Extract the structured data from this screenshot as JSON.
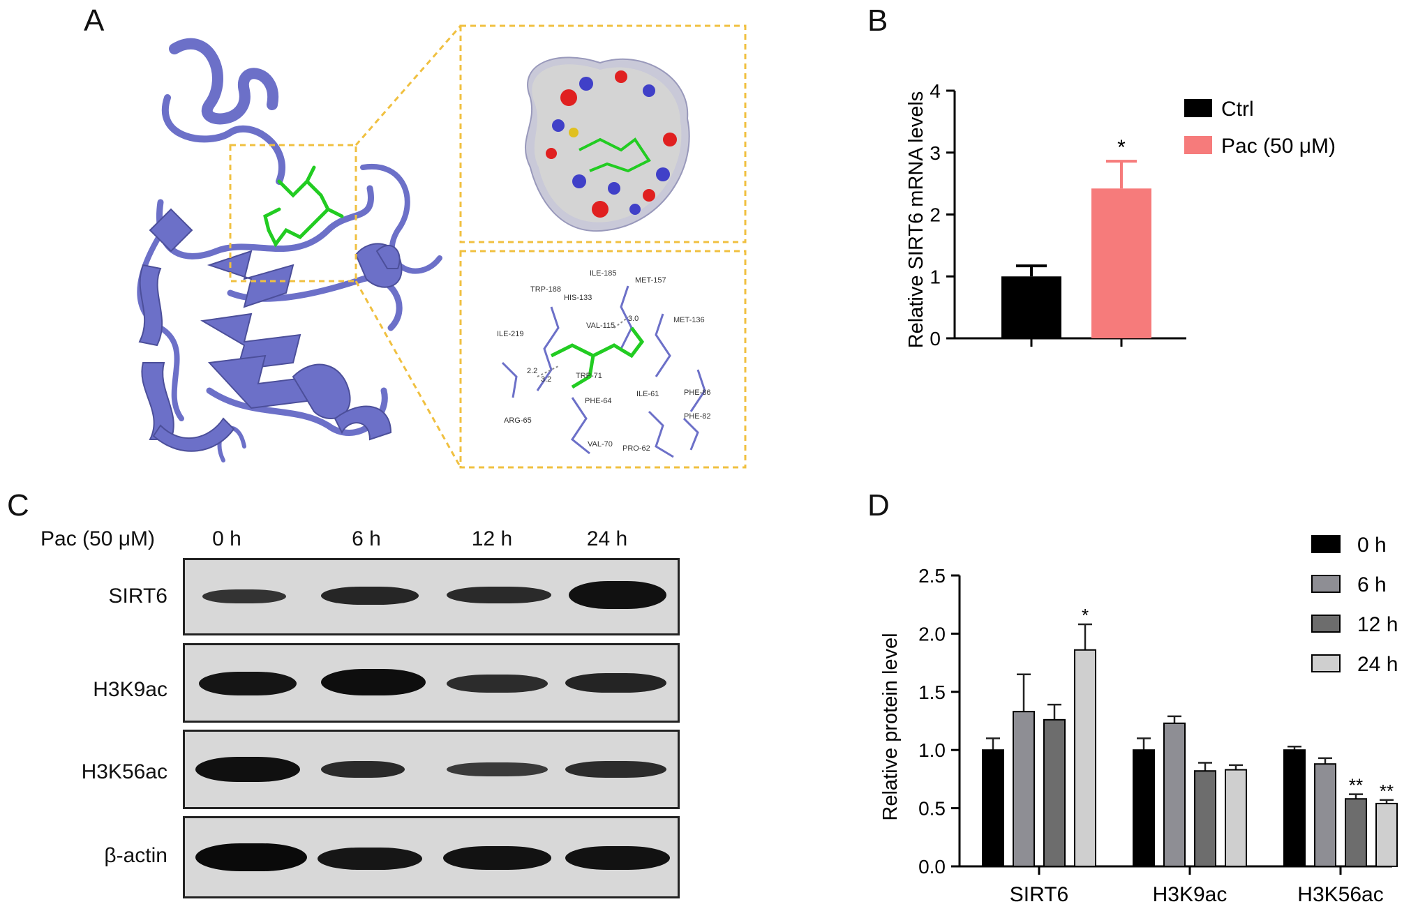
{
  "panels": {
    "a": "A",
    "b": "B",
    "c": "C",
    "d": "D"
  },
  "residues": [
    "ILE-185",
    "MET-157",
    "TRP-188",
    "HIS-133",
    "MET-136",
    "VAL-115",
    "ILE-219",
    "TRP-71",
    "PHE-64",
    "ILE-61",
    "PHE-86",
    "PHE-82",
    "ARG-65",
    "VAL-70",
    "PRO-62"
  ],
  "distances": [
    "3.0",
    "2.2",
    "3.2"
  ],
  "blot": {
    "treatment_label": "Pac (50 μM)",
    "lanes": [
      "0 h",
      "6 h",
      "12 h",
      "24 h"
    ],
    "rows": [
      "SIRT6",
      "H3K9ac",
      "H3K56ac",
      "β-actin"
    ]
  },
  "chart_data": [
    {
      "type": "bar",
      "panel": "B",
      "ylabel": "Relative SIRT6 mRNA levels",
      "ylim": [
        0,
        4
      ],
      "yticks": [
        "0",
        "1",
        "2",
        "3",
        "4"
      ],
      "series": [
        {
          "name": "Ctrl",
          "value": 1.0,
          "error": 0.17,
          "color": "#000000"
        },
        {
          "name": "Pac (50 μM)",
          "value": 2.42,
          "error": 0.44,
          "color": "#f67b7b",
          "annotation": "*"
        }
      ],
      "legend": "top-right"
    },
    {
      "type": "bar",
      "panel": "D",
      "ylabel": "Relative protein level",
      "ylim": [
        0,
        2.5
      ],
      "yticks": [
        "0.0",
        "0.5",
        "1.0",
        "1.5",
        "2.0",
        "2.5"
      ],
      "categories": [
        "SIRT6",
        "H3K9ac",
        "H3K56ac"
      ],
      "series": [
        {
          "name": "0 h",
          "color": "#000000",
          "values": [
            1.0,
            1.0,
            1.0
          ],
          "errors": [
            0.1,
            0.1,
            0.03
          ],
          "annotations": [
            "",
            "",
            ""
          ]
        },
        {
          "name": "6 h",
          "color": "#8e8e94",
          "values": [
            1.33,
            1.23,
            0.88
          ],
          "errors": [
            0.32,
            0.06,
            0.05
          ],
          "annotations": [
            "",
            "",
            ""
          ]
        },
        {
          "name": "12 h",
          "color": "#6d6d6d",
          "values": [
            1.26,
            0.82,
            0.58
          ],
          "errors": [
            0.13,
            0.07,
            0.04
          ],
          "annotations": [
            "",
            "",
            "**"
          ]
        },
        {
          "name": "24 h",
          "color": "#cfcfcf",
          "values": [
            1.86,
            0.83,
            0.54
          ],
          "errors": [
            0.22,
            0.04,
            0.03
          ],
          "annotations": [
            "*",
            "",
            "**"
          ]
        }
      ],
      "legend": "top-right"
    }
  ]
}
